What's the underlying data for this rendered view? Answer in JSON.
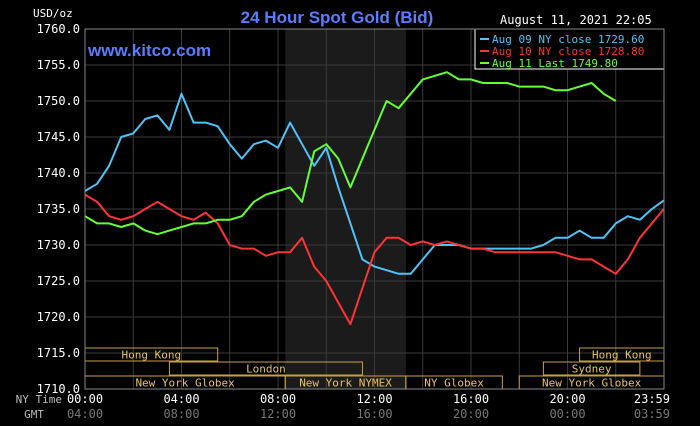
{
  "chart_data": {
    "type": "line",
    "title": "24 Hour Spot Gold (Bid)",
    "brand": "www.kitco.com",
    "timestamp": "August 11, 2021 22:05",
    "ylabel": "USD/oz",
    "ylim": [
      1710,
      1760
    ],
    "yticks": [
      "1760.0",
      "1755.0",
      "1750.0",
      "1745.0",
      "1740.0",
      "1735.0",
      "1730.0",
      "1725.0",
      "1720.0",
      "1715.0",
      "1710.0"
    ],
    "xlim_hours": [
      0,
      24
    ],
    "x_rows": [
      {
        "label": "NY Time",
        "ticks": [
          "00:00",
          "04:00",
          "08:00",
          "12:00",
          "16:00",
          "20:00",
          "23:59"
        ]
      },
      {
        "label": "GMT",
        "ticks": [
          "04:00",
          "08:00",
          "12:00",
          "16:00",
          "20:00",
          "00:00",
          "03:59"
        ]
      }
    ],
    "sessions": [
      {
        "name": "Hong Kong",
        "start": 0,
        "end": 5.5,
        "row": 0
      },
      {
        "name": "Hong Kong",
        "start": 20.5,
        "end": 24,
        "row": 0
      },
      {
        "name": "London",
        "start": 3.5,
        "end": 11.5,
        "row": 1
      },
      {
        "name": "Sydney",
        "start": 19,
        "end": 23,
        "row": 1
      },
      {
        "name": "New York Globex",
        "start": 0,
        "end": 8.3,
        "row": 2
      },
      {
        "name": "New York NYMEX",
        "start": 8.3,
        "end": 13.3,
        "row": 2
      },
      {
        "name": "NY Globex",
        "start": 13.3,
        "end": 17.3,
        "row": 2
      },
      {
        "name": "New York Globex",
        "start": 18,
        "end": 24,
        "row": 2
      }
    ],
    "shaded_range_hours": [
      8.3,
      13.3
    ],
    "grid": true,
    "legend_position": "top-right",
    "series": [
      {
        "name": "Aug 09 NY close 1729.60",
        "color": "#4fc3f7",
        "x": [
          0,
          0.5,
          1,
          1.5,
          2,
          2.5,
          3,
          3.5,
          3.8,
          4,
          4.5,
          5,
          5.5,
          6,
          6.5,
          7,
          7.5,
          8,
          8.5,
          9,
          9.5,
          10,
          10.5,
          11,
          11.5,
          12,
          12.5,
          13,
          13.5,
          14,
          14.5,
          15,
          15.5,
          16,
          16.5,
          17,
          17.5,
          18,
          18.5,
          19,
          19.5,
          20,
          20.5,
          21,
          21.5,
          22,
          22.5,
          23,
          23.5,
          23.99
        ],
        "y": [
          1737.5,
          1738.5,
          1741,
          1745,
          1745.5,
          1747.5,
          1748,
          1746,
          1749,
          1751,
          1747,
          1747,
          1746.5,
          1744,
          1742,
          1744,
          1744.5,
          1743.5,
          1747,
          1744,
          1741,
          1743.5,
          1738,
          1733,
          1728,
          1727,
          1726.5,
          1726,
          1726,
          1728,
          1730,
          1730,
          1730,
          1729.5,
          1729.5,
          1729.5,
          1729.5,
          1729.5,
          1729.5,
          1730,
          1731,
          1731,
          1732,
          1731,
          1731,
          1733,
          1734,
          1733.5,
          1735,
          1736.2
        ]
      },
      {
        "name": "Aug 10 NY close 1728.80",
        "color": "#ff3333",
        "x": [
          0,
          0.5,
          1,
          1.5,
          2,
          2.5,
          3,
          3.5,
          4,
          4.5,
          5,
          5.5,
          6,
          6.5,
          7,
          7.5,
          8,
          8.5,
          9,
          9.5,
          10,
          10.5,
          11,
          11.5,
          12,
          12.5,
          13,
          13.5,
          14,
          14.5,
          15,
          15.5,
          16,
          16.5,
          17,
          17.5,
          18,
          18.5,
          19,
          19.5,
          20,
          20.5,
          21,
          21.5,
          22,
          22.5,
          23,
          23.5,
          23.99
        ],
        "y": [
          1737,
          1736,
          1734,
          1733.5,
          1734,
          1735,
          1736,
          1735,
          1734,
          1733.5,
          1734.5,
          1733,
          1730,
          1729.5,
          1729.5,
          1728.5,
          1729,
          1729,
          1731,
          1727,
          1725,
          1722,
          1719,
          1724,
          1729,
          1731,
          1731,
          1730,
          1730.5,
          1730,
          1730.5,
          1730,
          1729.5,
          1729.5,
          1729,
          1729,
          1729,
          1729,
          1729,
          1729,
          1728.5,
          1728,
          1728,
          1727,
          1726,
          1728,
          1731,
          1733,
          1735
        ]
      },
      {
        "name": "Aug 11 Last 1749.80",
        "color": "#66ff33",
        "x": [
          0,
          0.5,
          1,
          1.5,
          2,
          2.5,
          3,
          3.5,
          4,
          4.5,
          5,
          5.5,
          6,
          6.5,
          7,
          7.5,
          8,
          8.5,
          9,
          9.5,
          10,
          10.5,
          11,
          11.5,
          12,
          12.5,
          13,
          13.5,
          14,
          14.5,
          15,
          15.5,
          16,
          16.5,
          17,
          17.5,
          18,
          18.5,
          19,
          19.5,
          20,
          20.5,
          21,
          21.5,
          22
        ],
        "y": [
          1734,
          1733,
          1733,
          1732.5,
          1733,
          1732,
          1731.5,
          1732,
          1732.5,
          1733,
          1733,
          1733.5,
          1733.5,
          1734,
          1736,
          1737,
          1737.5,
          1738,
          1736,
          1743,
          1744,
          1742,
          1738,
          1742,
          1746,
          1750,
          1749,
          1751,
          1753,
          1753.5,
          1754,
          1753,
          1753,
          1752.5,
          1752.5,
          1752.5,
          1752,
          1752,
          1752,
          1751.5,
          1751.5,
          1752,
          1752.5,
          1751,
          1750
        ]
      }
    ]
  }
}
